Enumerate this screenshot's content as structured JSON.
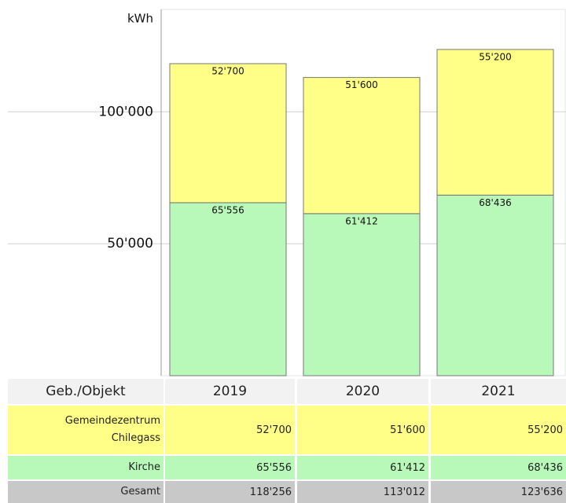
{
  "chart_data": {
    "type": "stacked_bar",
    "y_label": "kWh",
    "categories": [
      "2019",
      "2020",
      "2021"
    ],
    "series": [
      {
        "name": "Kirche",
        "color": "#b8f8b8",
        "values": [
          65556,
          61412,
          68436
        ],
        "value_labels": [
          "65'556",
          "61'412",
          "68'436"
        ]
      },
      {
        "name": "Gemeindezentrum Chilegass",
        "color": "#ffff88",
        "values": [
          52700,
          51600,
          55200
        ],
        "value_labels": [
          "52'700",
          "51'600",
          "55'200"
        ]
      }
    ],
    "ylim": [
      0,
      140000
    ],
    "yticks": [
      {
        "value": 50000,
        "label": "50'000"
      },
      {
        "value": 100000,
        "label": "100'000"
      }
    ],
    "grid": true,
    "table_header": "Geb./Objekt",
    "total_name": "Gesamt",
    "totals": [
      118256,
      113012,
      123636
    ],
    "total_labels": [
      "118'256",
      "113'012",
      "123'636"
    ],
    "total_color": "#c8c8c8"
  }
}
